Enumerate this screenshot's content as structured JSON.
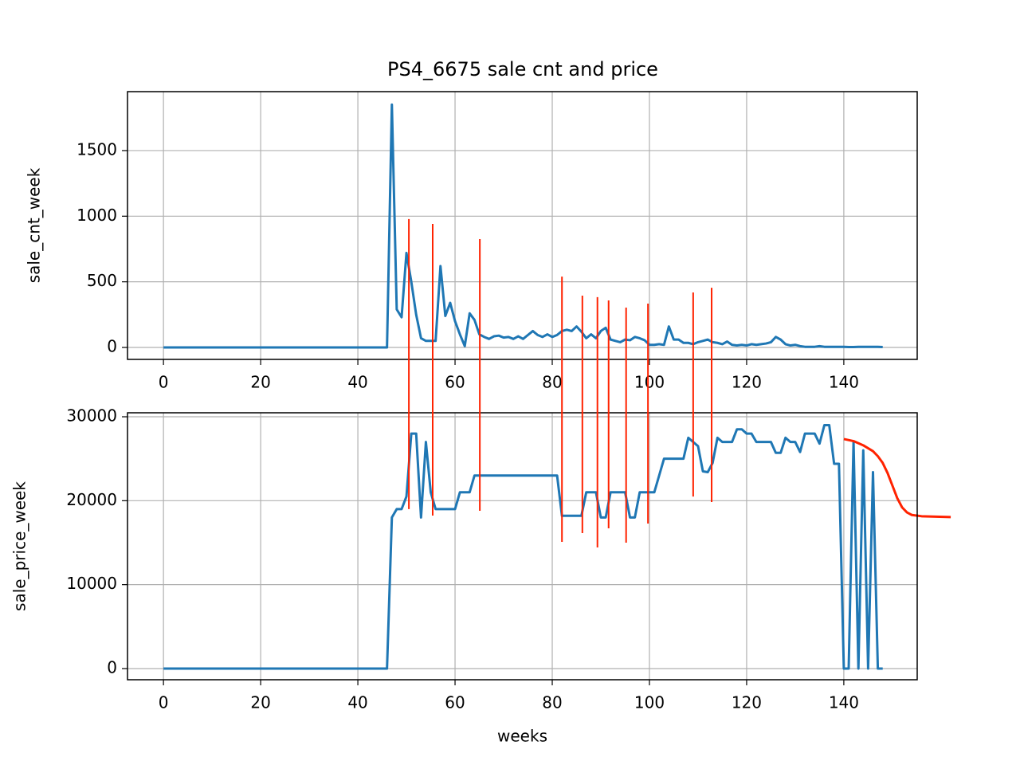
{
  "title": "PS4_6675 sale cnt and price",
  "chart_data": [
    {
      "type": "line",
      "ylabel": "sale_cnt_week",
      "grid": true,
      "xlim": [
        -7.4,
        155.1
      ],
      "xticks": [
        0,
        20,
        40,
        60,
        80,
        100,
        120,
        140
      ],
      "ylim": [
        -91,
        1949
      ],
      "yticks": [
        0,
        500,
        1000,
        1500
      ],
      "x": [
        0,
        1,
        2,
        3,
        4,
        5,
        6,
        7,
        8,
        9,
        10,
        11,
        12,
        13,
        14,
        15,
        16,
        17,
        18,
        19,
        20,
        21,
        22,
        23,
        24,
        25,
        26,
        27,
        28,
        29,
        30,
        31,
        32,
        33,
        34,
        35,
        36,
        37,
        38,
        39,
        40,
        41,
        42,
        43,
        44,
        45,
        46,
        47,
        48,
        49,
        50,
        51,
        52,
        53,
        54,
        55,
        56,
        57,
        58,
        59,
        60,
        61,
        62,
        63,
        64,
        65,
        66,
        67,
        68,
        69,
        70,
        71,
        72,
        73,
        74,
        75,
        76,
        77,
        78,
        79,
        80,
        81,
        82,
        83,
        84,
        85,
        86,
        87,
        88,
        89,
        90,
        91,
        92,
        93,
        94,
        95,
        96,
        97,
        98,
        99,
        100,
        101,
        102,
        103,
        104,
        105,
        106,
        107,
        108,
        109,
        110,
        111,
        112,
        113,
        114,
        115,
        116,
        117,
        118,
        119,
        120,
        121,
        122,
        123,
        124,
        125,
        126,
        127,
        128,
        129,
        130,
        131,
        132,
        133,
        134,
        135,
        136,
        137,
        138,
        139,
        140,
        141,
        142,
        143,
        144,
        145,
        146,
        147,
        148
      ],
      "series": [
        {
          "color": "#1f77b4",
          "values": [
            0,
            0,
            0,
            0,
            0,
            0,
            0,
            0,
            0,
            0,
            0,
            0,
            0,
            0,
            0,
            0,
            0,
            0,
            0,
            0,
            0,
            0,
            0,
            0,
            0,
            0,
            0,
            0,
            0,
            0,
            0,
            0,
            0,
            0,
            0,
            0,
            0,
            0,
            0,
            0,
            0,
            0,
            0,
            0,
            0,
            0,
            0,
            1850,
            290,
            230,
            720,
            500,
            250,
            70,
            50,
            50,
            50,
            620,
            240,
            340,
            200,
            100,
            10,
            260,
            210,
            100,
            80,
            65,
            85,
            90,
            75,
            80,
            65,
            85,
            65,
            95,
            125,
            95,
            80,
            100,
            80,
            95,
            125,
            135,
            125,
            160,
            120,
            70,
            100,
            70,
            125,
            150,
            60,
            50,
            40,
            60,
            55,
            80,
            70,
            55,
            20,
            20,
            25,
            20,
            160,
            60,
            60,
            35,
            35,
            25,
            40,
            50,
            60,
            40,
            35,
            25,
            45,
            20,
            15,
            20,
            15,
            25,
            20,
            25,
            30,
            40,
            80,
            60,
            25,
            15,
            20,
            10,
            5,
            5,
            5,
            10,
            5,
            5,
            5,
            5,
            5,
            3,
            3,
            5,
            5,
            5,
            5,
            5,
            3
          ]
        }
      ]
    },
    {
      "type": "line",
      "ylabel": "sale_price_week",
      "xlabel": "weeks",
      "grid": true,
      "xlim": [
        -7.4,
        155.1
      ],
      "xticks": [
        0,
        20,
        40,
        60,
        80,
        100,
        120,
        140
      ],
      "ylim": [
        -1330,
        30475
      ],
      "yticks": [
        0,
        10000,
        20000,
        30000
      ],
      "series": [
        {
          "color": "#1f77b4",
          "x": [
            0,
            1,
            2,
            3,
            4,
            5,
            6,
            7,
            8,
            9,
            10,
            11,
            12,
            13,
            14,
            15,
            16,
            17,
            18,
            19,
            20,
            21,
            22,
            23,
            24,
            25,
            26,
            27,
            28,
            29,
            30,
            31,
            32,
            33,
            34,
            35,
            36,
            37,
            38,
            39,
            40,
            41,
            42,
            43,
            44,
            45,
            46,
            47,
            48,
            49,
            50,
            51,
            52,
            53,
            54,
            55,
            56,
            57,
            58,
            59,
            60,
            61,
            62,
            63,
            64,
            65,
            66,
            67,
            68,
            69,
            70,
            71,
            72,
            73,
            74,
            75,
            76,
            77,
            78,
            79,
            80,
            81,
            82,
            83,
            84,
            85,
            86,
            87,
            88,
            89,
            90,
            91,
            92,
            93,
            94,
            95,
            96,
            97,
            98,
            99,
            100,
            101,
            102,
            103,
            104,
            105,
            106,
            107,
            108,
            109,
            110,
            111,
            112,
            113,
            114,
            115,
            116,
            117,
            118,
            119,
            120,
            121,
            122,
            123,
            124,
            125,
            126,
            127,
            128,
            129,
            130,
            131,
            132,
            133,
            134,
            135,
            136,
            137,
            138,
            139,
            140,
            141,
            142,
            143,
            144,
            145,
            146,
            147,
            148
          ],
          "values": [
            0,
            0,
            0,
            0,
            0,
            0,
            0,
            0,
            0,
            0,
            0,
            0,
            0,
            0,
            0,
            0,
            0,
            0,
            0,
            0,
            0,
            0,
            0,
            0,
            0,
            0,
            0,
            0,
            0,
            0,
            0,
            0,
            0,
            0,
            0,
            0,
            0,
            0,
            0,
            0,
            0,
            0,
            0,
            0,
            0,
            0,
            0,
            18000,
            19000,
            19000,
            20500,
            28000,
            28000,
            18000,
            27000,
            21000,
            19000,
            19000,
            19000,
            19000,
            19000,
            21000,
            21000,
            21000,
            23000,
            23000,
            23000,
            23000,
            23000,
            23000,
            23000,
            23000,
            23000,
            23000,
            23000,
            23000,
            23000,
            23000,
            23000,
            23000,
            23000,
            23000,
            18200,
            18200,
            18200,
            18200,
            18200,
            21000,
            21000,
            21000,
            18000,
            18000,
            21000,
            21000,
            21000,
            21000,
            18000,
            18000,
            21000,
            21000,
            21000,
            21000,
            23000,
            25000,
            25000,
            25000,
            25000,
            25000,
            27500,
            27000,
            26500,
            23500,
            23400,
            24500,
            27500,
            27000,
            27000,
            27000,
            28500,
            28500,
            28000,
            28000,
            27000,
            27000,
            27000,
            27000,
            25700,
            25700,
            27500,
            27000,
            27000,
            25800,
            28000,
            28000,
            28000,
            26800,
            29000,
            29000,
            24400,
            24400,
            0,
            0,
            27000,
            0,
            26000,
            0,
            23400,
            0,
            0
          ]
        },
        {
          "color": "#ff2200",
          "x": [
            140,
            142,
            144,
            146,
            147,
            148,
            149,
            150,
            151,
            152,
            153,
            154,
            156,
            159,
            162
          ],
          "values": [
            27350,
            27100,
            26600,
            25900,
            25300,
            24500,
            23300,
            21800,
            20300,
            19200,
            18600,
            18300,
            18150,
            18100,
            18050
          ]
        }
      ]
    }
  ],
  "event_lines": {
    "color": "#ff2200",
    "x": [
      50.5,
      55.4,
      65.1,
      82,
      86.2,
      89.3,
      91.6,
      95.2,
      99.7,
      109,
      112.8
    ],
    "top": [
      978,
      941,
      826,
      540,
      395,
      383,
      358,
      304,
      334,
      419,
      455
    ],
    "bottom": [
      19000,
      18230,
      18800,
      15100,
      16140,
      14430,
      16710,
      15000,
      17280,
      20500,
      19840
    ]
  }
}
